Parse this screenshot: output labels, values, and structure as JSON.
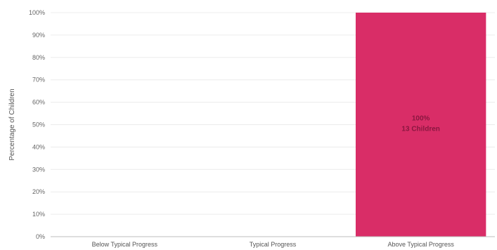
{
  "chart_data": {
    "type": "bar",
    "categories": [
      "Below Typical Progress",
      "Typical Progress",
      "Above Typical Progress"
    ],
    "values": [
      0,
      0,
      100
    ],
    "ylabel": "Percentage of Children",
    "ylim": [
      0,
      100
    ],
    "yticks": [
      "0%",
      "10%",
      "20%",
      "30%",
      "40%",
      "50%",
      "60%",
      "70%",
      "80%",
      "90%",
      "100%"
    ],
    "grid": true,
    "data_labels": [
      {
        "category_index": 2,
        "percent": "100%",
        "count": "13 Children"
      }
    ],
    "colors": {
      "bar": "#d92d67",
      "label": "#8a1740"
    }
  }
}
